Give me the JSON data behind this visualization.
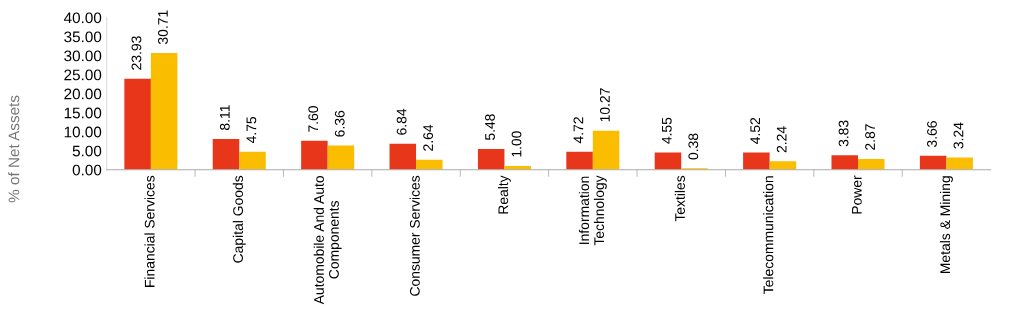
{
  "chart_data": {
    "type": "bar",
    "ylabel": "% of Net Assets",
    "categories": [
      "Financial Services",
      "Capital Goods",
      "Automobile And Auto\nComponents",
      "Consumer Services",
      "Realty",
      "Information\nTechnology",
      "Textiles",
      "Telecommunication",
      "Power",
      "Metals & Mining"
    ],
    "series": [
      {
        "color": "#e8361a",
        "values": [
          23.93,
          8.11,
          7.6,
          6.84,
          5.48,
          4.72,
          4.55,
          4.52,
          3.83,
          3.66
        ],
        "value_labels": [
          "23.93",
          "8.11",
          "7.60",
          "6.84",
          "5.48",
          "4.72",
          "4.55",
          "4.52",
          "3.83",
          "3.66"
        ]
      },
      {
        "color": "#fbbd00",
        "values": [
          30.71,
          4.75,
          6.36,
          2.64,
          1.0,
          10.27,
          0.38,
          2.24,
          2.87,
          3.24
        ],
        "value_labels": [
          "30.71",
          "4.75",
          "6.36",
          "2.64",
          "1.00",
          "10.27",
          "0.38",
          "2.24",
          "2.87",
          "3.24"
        ]
      }
    ],
    "ylim": [
      0,
      40
    ],
    "yticks": [
      {
        "value": 0,
        "label": "0.00"
      },
      {
        "value": 5,
        "label": "5.00"
      },
      {
        "value": 10,
        "label": "10.00"
      },
      {
        "value": 15,
        "label": "15.00"
      },
      {
        "value": 20,
        "label": "20.00"
      },
      {
        "value": 25,
        "label": "25.00"
      },
      {
        "value": 30,
        "label": "30.00"
      },
      {
        "value": 35,
        "label": "35.00"
      },
      {
        "value": 40,
        "label": "40.00"
      }
    ],
    "grid": false,
    "legend": false
  }
}
